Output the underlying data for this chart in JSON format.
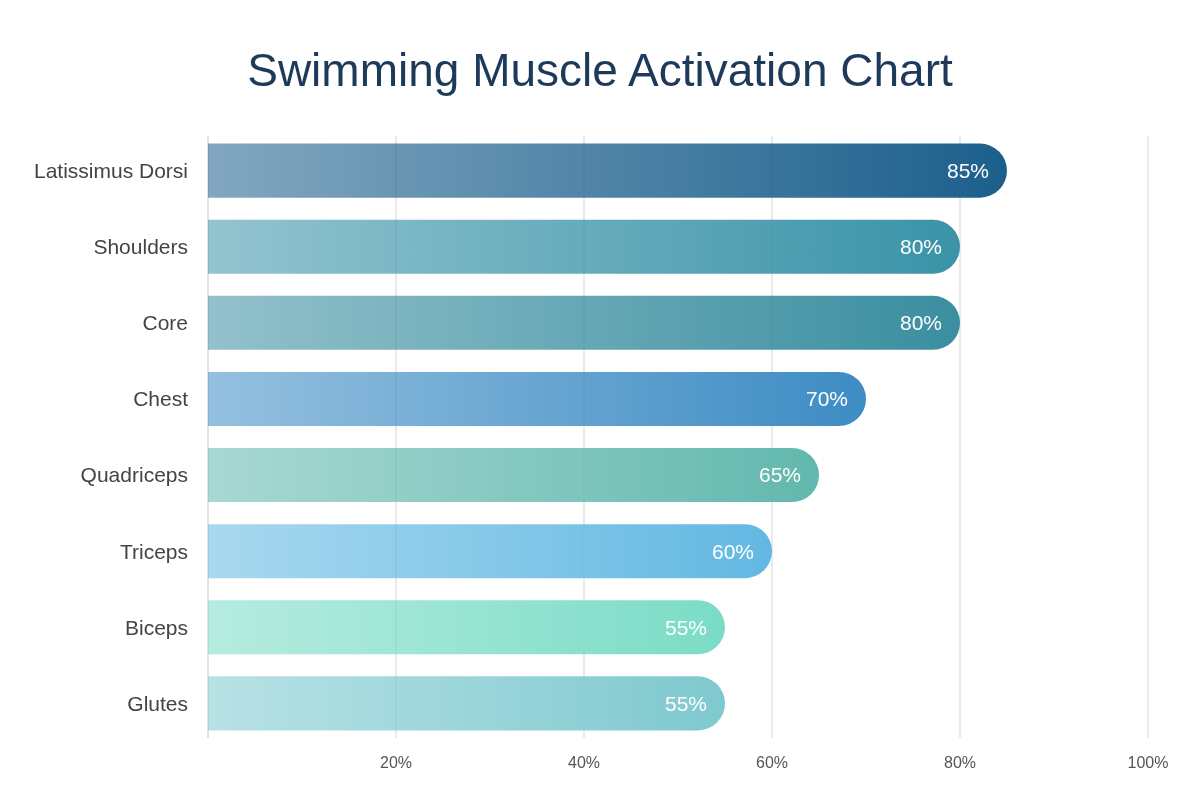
{
  "chart_data": {
    "type": "bar",
    "orientation": "horizontal",
    "title": "Swimming Muscle Activation Chart",
    "categories": [
      "Latissimus Dorsi",
      "Shoulders",
      "Core",
      "Chest",
      "Quadriceps",
      "Triceps",
      "Biceps",
      "Glutes"
    ],
    "values": [
      85,
      80,
      80,
      70,
      65,
      60,
      55,
      55
    ],
    "colors": [
      "#1c5f8c",
      "#3a93a8",
      "#3a8ea0",
      "#3d8cc4",
      "#62b8ae",
      "#62b8e2",
      "#7adcc6",
      "#7ec9cf"
    ],
    "value_labels": [
      "85%",
      "80%",
      "80%",
      "70%",
      "65%",
      "60%",
      "55%",
      "55%"
    ],
    "xlim": [
      0,
      100
    ],
    "xticks": [
      {
        "value": 20,
        "label": "20%"
      },
      {
        "value": 40,
        "label": "40%"
      },
      {
        "value": 60,
        "label": "60%"
      },
      {
        "value": 80,
        "label": "80%"
      },
      {
        "value": 100,
        "label": "100%"
      }
    ],
    "grid": "x"
  }
}
